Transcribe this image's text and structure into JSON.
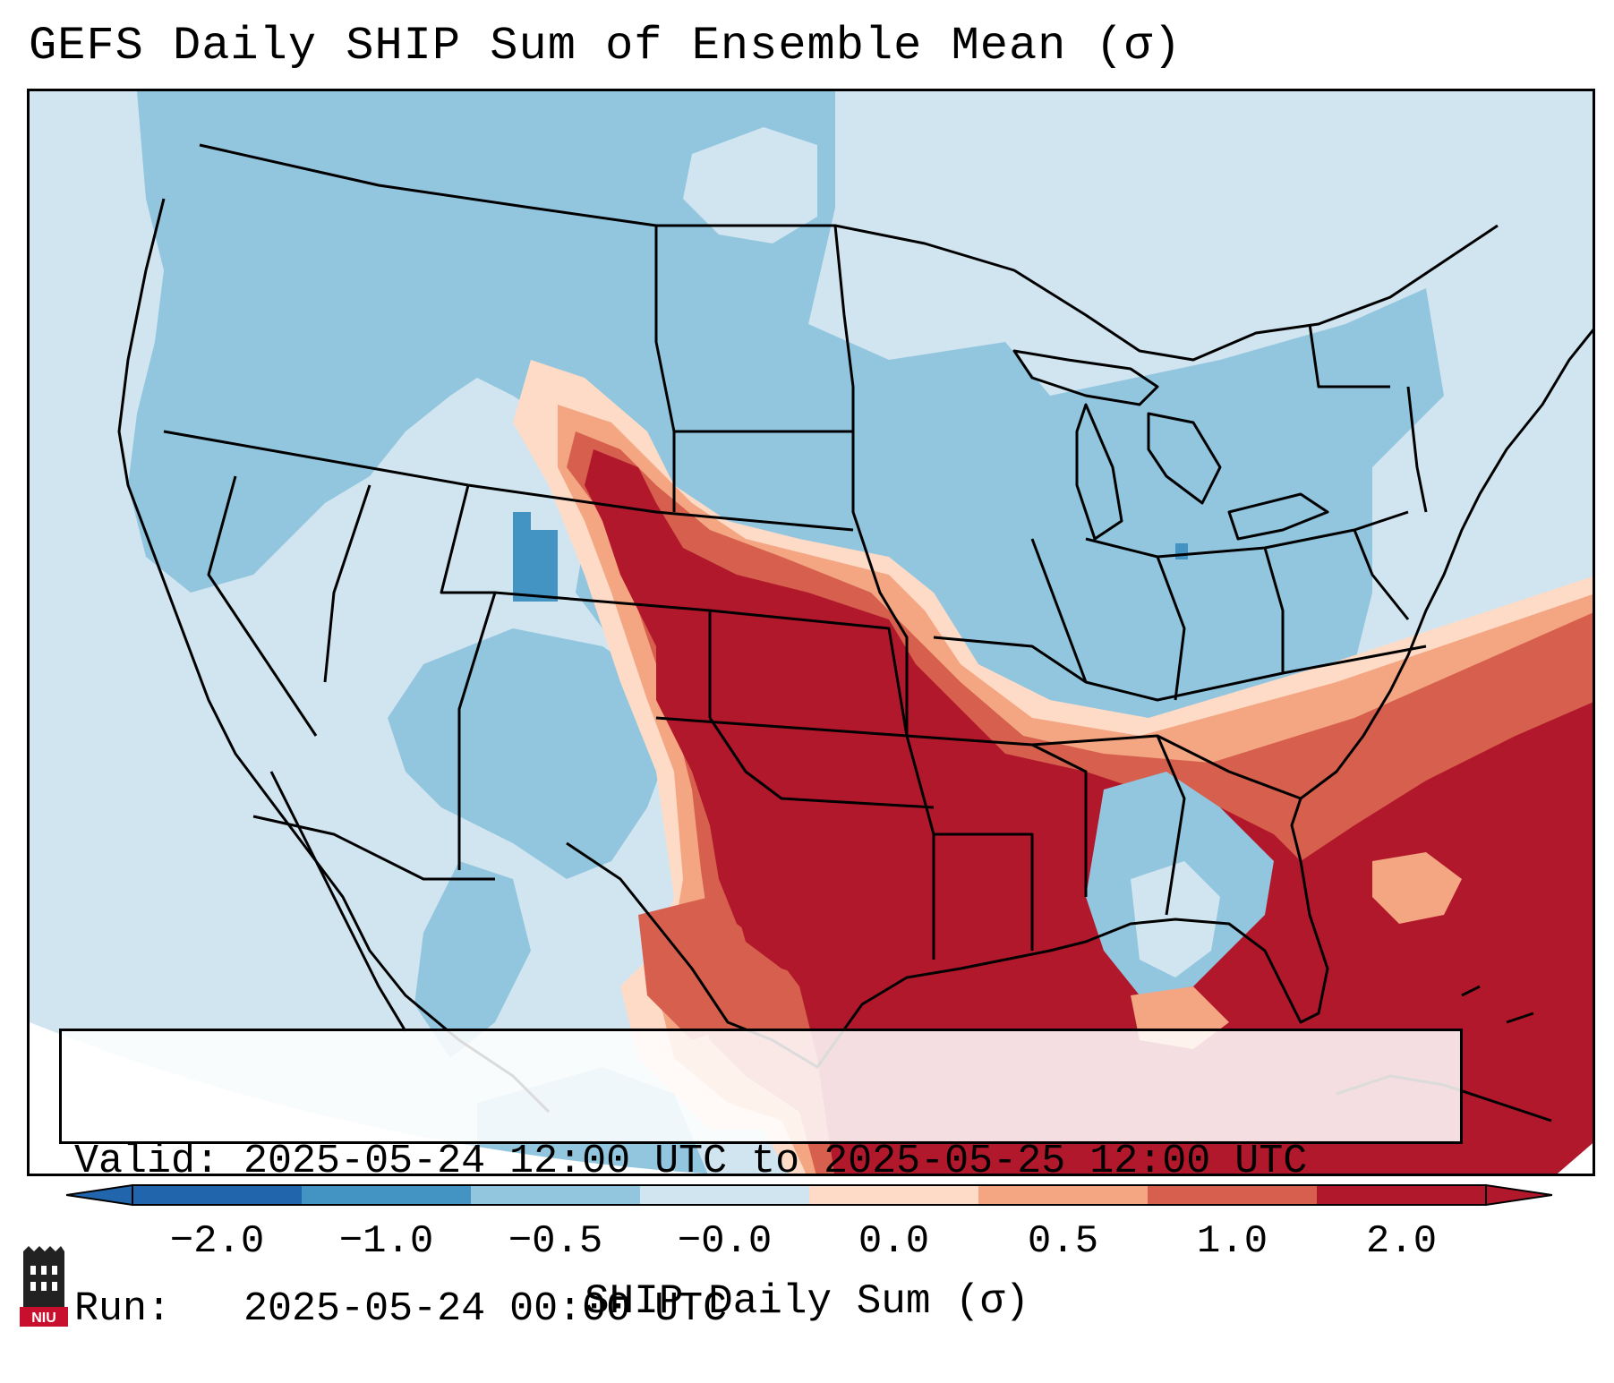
{
  "title": "GEFS Daily SHIP Sum of Ensemble Mean (σ)",
  "info": {
    "valid_label": "Valid:",
    "valid_value": "2025-05-24 12:00 UTC to 2025-05-25 12:00 UTC",
    "run_label": "Run:",
    "run_value": "2025-05-24 00:00 UTC"
  },
  "colorbar": {
    "label": "SHIP Daily Sum (σ)",
    "ticks": [
      "−2.0",
      "−1.0",
      "−0.5",
      "−0.0",
      "0.0",
      "0.5",
      "1.0",
      "2.0"
    ],
    "colors": [
      "#2166ac",
      "#4393c3",
      "#92c5de",
      "#d1e5f0",
      "#fddbc7",
      "#f4a582",
      "#d6604d",
      "#b2182b"
    ],
    "extend": "both"
  },
  "logo": {
    "text": "NIU"
  }
}
